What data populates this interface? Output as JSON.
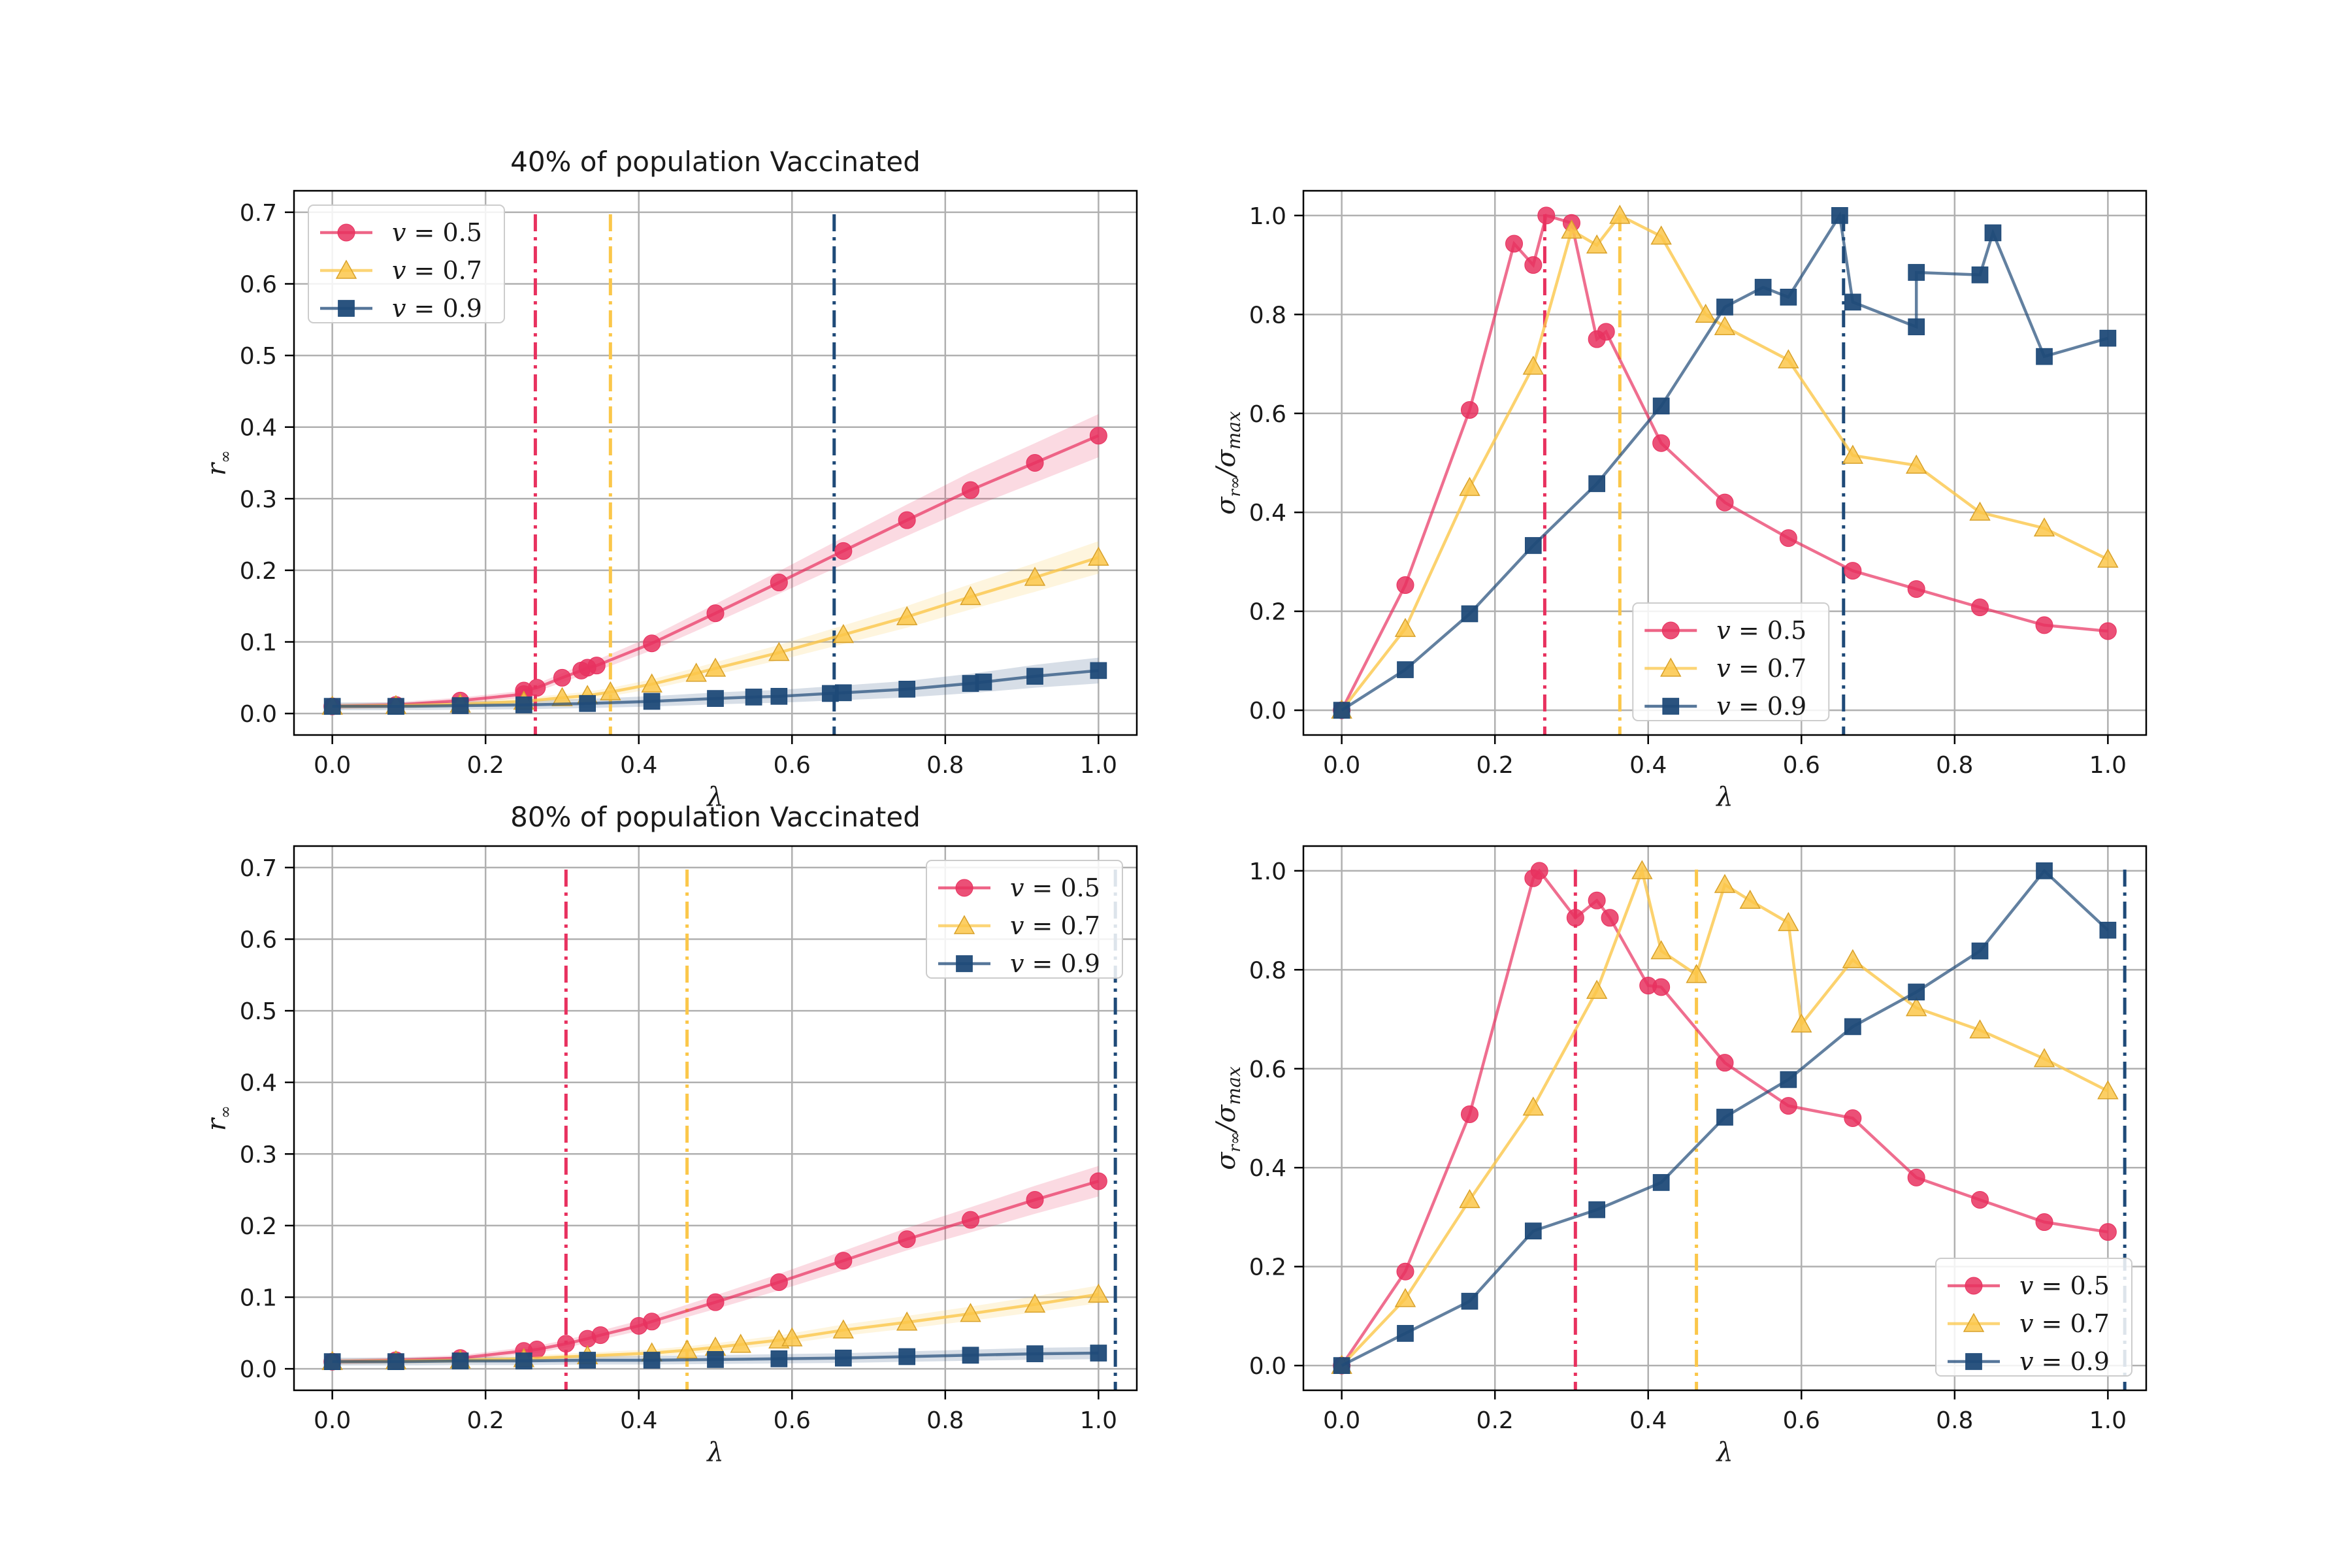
{
  "colors": {
    "v05": "#e8315f",
    "v07": "#fbc74a",
    "v09": "#1f4a78",
    "grid": "#b0b0b0"
  },
  "legend_labels": [
    "v = 0.5",
    "v = 0.7",
    "v = 0.9"
  ],
  "chart_data": [
    {
      "type": "line",
      "title": "40% of population Vaccinated",
      "xlabel": "λ",
      "ylabel": "r∞",
      "xlim": [
        -0.05,
        1.05
      ],
      "ylim": [
        -0.03,
        0.73
      ],
      "xticks": [
        "0.0",
        "0.2",
        "0.4",
        "0.6",
        "0.8",
        "1.0"
      ],
      "yticks": [
        "0.0",
        "0.1",
        "0.2",
        "0.3",
        "0.4",
        "0.5",
        "0.6",
        "0.7"
      ],
      "grid": true,
      "legend": "upper left",
      "vlines": [
        0.265,
        0.363,
        0.655
      ],
      "band": true,
      "series": [
        {
          "name": "v = 0.5",
          "marker": "circle",
          "x": [
            0,
            0.083,
            0.167,
            0.25,
            0.25,
            0.267,
            0.3,
            0.325,
            0.333,
            0.345,
            0.417,
            0.5,
            0.583,
            0.667,
            0.75,
            0.833,
            0.917,
            1.0
          ],
          "y": [
            0.01,
            0.012,
            0.018,
            0.027,
            0.032,
            0.036,
            0.05,
            0.06,
            0.064,
            0.067,
            0.098,
            0.14,
            0.183,
            0.227,
            0.27,
            0.312,
            0.35,
            0.388
          ]
        },
        {
          "name": "v = 0.7",
          "marker": "triangle",
          "x": [
            0,
            0.083,
            0.167,
            0.25,
            0.3,
            0.333,
            0.363,
            0.417,
            0.475,
            0.5,
            0.583,
            0.667,
            0.75,
            0.833,
            0.917,
            1.0
          ],
          "y": [
            0.01,
            0.011,
            0.013,
            0.017,
            0.022,
            0.025,
            0.03,
            0.041,
            0.056,
            0.063,
            0.085,
            0.11,
            0.135,
            0.163,
            0.19,
            0.218
          ]
        },
        {
          "name": "v = 0.9",
          "marker": "square",
          "x": [
            0,
            0.083,
            0.167,
            0.25,
            0.333,
            0.417,
            0.5,
            0.55,
            0.583,
            0.65,
            0.667,
            0.75,
            0.833,
            0.85,
            0.917,
            1.0
          ],
          "y": [
            0.01,
            0.01,
            0.011,
            0.012,
            0.014,
            0.017,
            0.021,
            0.023,
            0.024,
            0.028,
            0.029,
            0.034,
            0.042,
            0.044,
            0.052,
            0.06
          ]
        }
      ]
    },
    {
      "type": "line",
      "title": "",
      "xlabel": "λ",
      "ylabel": "σr∞/σmax",
      "xlim": [
        -0.05,
        1.05
      ],
      "ylim": [
        -0.05,
        1.05
      ],
      "xticks": [
        "0.0",
        "0.2",
        "0.4",
        "0.6",
        "0.8",
        "1.0"
      ],
      "yticks": [
        "0.0",
        "0.2",
        "0.4",
        "0.6",
        "0.8",
        "1.0"
      ],
      "grid": true,
      "legend": "lower center",
      "vlines": [
        0.265,
        0.363,
        0.655
      ],
      "band": false,
      "series": [
        {
          "name": "v = 0.5",
          "marker": "circle",
          "x": [
            0,
            0.083,
            0.167,
            0.225,
            0.25,
            0.267,
            0.3,
            0.333,
            0.345,
            0.417,
            0.5,
            0.583,
            0.667,
            0.75,
            0.833,
            0.917,
            1.0
          ],
          "y": [
            0,
            0.253,
            0.607,
            0.943,
            0.9,
            1.0,
            0.985,
            0.75,
            0.765,
            0.54,
            0.42,
            0.348,
            0.282,
            0.245,
            0.208,
            0.172,
            0.16
          ]
        },
        {
          "name": "v = 0.7",
          "marker": "triangle",
          "x": [
            0,
            0.083,
            0.167,
            0.25,
            0.3,
            0.333,
            0.363,
            0.417,
            0.475,
            0.5,
            0.583,
            0.667,
            0.75,
            0.833,
            0.917,
            1.0
          ],
          "y": [
            0,
            0.165,
            0.45,
            0.695,
            0.97,
            0.94,
            1.0,
            0.958,
            0.8,
            0.775,
            0.708,
            0.515,
            0.495,
            0.4,
            0.368,
            0.305
          ]
        },
        {
          "name": "v = 0.9",
          "marker": "square",
          "x": [
            0,
            0.083,
            0.167,
            0.25,
            0.333,
            0.417,
            0.5,
            0.55,
            0.583,
            0.65,
            0.667,
            0.75,
            0.75,
            0.833,
            0.85,
            0.917,
            1.0
          ],
          "y": [
            0,
            0.082,
            0.195,
            0.333,
            0.458,
            0.615,
            0.815,
            0.855,
            0.835,
            1.0,
            0.825,
            0.775,
            0.885,
            0.88,
            0.965,
            0.715,
            0.752
          ]
        }
      ]
    },
    {
      "type": "line",
      "title": "80% of population Vaccinated",
      "xlabel": "λ",
      "ylabel": "r∞",
      "xlim": [
        -0.05,
        1.05
      ],
      "ylim": [
        -0.03,
        0.73
      ],
      "xticks": [
        "0.0",
        "0.2",
        "0.4",
        "0.6",
        "0.8",
        "1.0"
      ],
      "yticks": [
        "0.0",
        "0.1",
        "0.2",
        "0.3",
        "0.4",
        "0.5",
        "0.6",
        "0.7"
      ],
      "grid": true,
      "legend": "upper right",
      "vlines": [
        0.305,
        0.463,
        1.022
      ],
      "band": true,
      "series": [
        {
          "name": "v = 0.5",
          "marker": "circle",
          "x": [
            0,
            0.083,
            0.167,
            0.25,
            0.267,
            0.305,
            0.333,
            0.35,
            0.4,
            0.417,
            0.5,
            0.583,
            0.667,
            0.75,
            0.833,
            0.917,
            1.0
          ],
          "y": [
            0.01,
            0.012,
            0.015,
            0.025,
            0.027,
            0.035,
            0.042,
            0.047,
            0.06,
            0.066,
            0.093,
            0.121,
            0.151,
            0.181,
            0.208,
            0.236,
            0.262
          ]
        },
        {
          "name": "v = 0.7",
          "marker": "triangle",
          "x": [
            0,
            0.083,
            0.167,
            0.25,
            0.333,
            0.417,
            0.463,
            0.5,
            0.533,
            0.583,
            0.6,
            0.667,
            0.75,
            0.833,
            0.917,
            1.0
          ],
          "y": [
            0.01,
            0.011,
            0.012,
            0.014,
            0.018,
            0.022,
            0.026,
            0.03,
            0.034,
            0.04,
            0.043,
            0.054,
            0.065,
            0.077,
            0.09,
            0.104
          ]
        },
        {
          "name": "v = 0.9",
          "marker": "square",
          "x": [
            0,
            0.083,
            0.167,
            0.25,
            0.333,
            0.417,
            0.5,
            0.583,
            0.667,
            0.75,
            0.833,
            0.917,
            1.0
          ],
          "y": [
            0.01,
            0.01,
            0.011,
            0.011,
            0.012,
            0.012,
            0.013,
            0.014,
            0.015,
            0.017,
            0.019,
            0.021,
            0.022
          ]
        }
      ]
    },
    {
      "type": "line",
      "title": "",
      "xlabel": "λ",
      "ylabel": "σr∞/σmax",
      "xlim": [
        -0.05,
        1.05
      ],
      "ylim": [
        -0.05,
        1.05
      ],
      "xticks": [
        "0.0",
        "0.2",
        "0.4",
        "0.6",
        "0.8",
        "1.0"
      ],
      "yticks": [
        "0.0",
        "0.2",
        "0.4",
        "0.6",
        "0.8",
        "1.0"
      ],
      "grid": true,
      "legend": "lower right",
      "vlines": [
        0.305,
        0.463,
        1.022
      ],
      "band": false,
      "series": [
        {
          "name": "v = 0.5",
          "marker": "circle",
          "x": [
            0,
            0.083,
            0.167,
            0.25,
            0.258,
            0.305,
            0.333,
            0.35,
            0.4,
            0.417,
            0.5,
            0.583,
            0.667,
            0.75,
            0.833,
            0.917,
            1.0
          ],
          "y": [
            0,
            0.19,
            0.508,
            0.985,
            1.0,
            0.905,
            0.94,
            0.905,
            0.768,
            0.765,
            0.612,
            0.525,
            0.5,
            0.38,
            0.335,
            0.29,
            0.27
          ]
        },
        {
          "name": "v = 0.7",
          "marker": "triangle",
          "x": [
            0,
            0.083,
            0.167,
            0.25,
            0.333,
            0.392,
            0.417,
            0.463,
            0.5,
            0.533,
            0.583,
            0.6,
            0.667,
            0.75,
            0.833,
            0.917,
            1.0
          ],
          "y": [
            0,
            0.135,
            0.335,
            0.522,
            0.758,
            1.0,
            0.838,
            0.79,
            0.972,
            0.94,
            0.895,
            0.69,
            0.82,
            0.723,
            0.678,
            0.62,
            0.555
          ]
        },
        {
          "name": "v = 0.9",
          "marker": "square",
          "x": [
            0,
            0.083,
            0.167,
            0.25,
            0.333,
            0.417,
            0.5,
            0.583,
            0.667,
            0.75,
            0.833,
            0.917,
            1.0
          ],
          "y": [
            0,
            0.065,
            0.13,
            0.272,
            0.315,
            0.37,
            0.502,
            0.578,
            0.685,
            0.755,
            0.838,
            1.0,
            0.88
          ]
        }
      ]
    }
  ]
}
